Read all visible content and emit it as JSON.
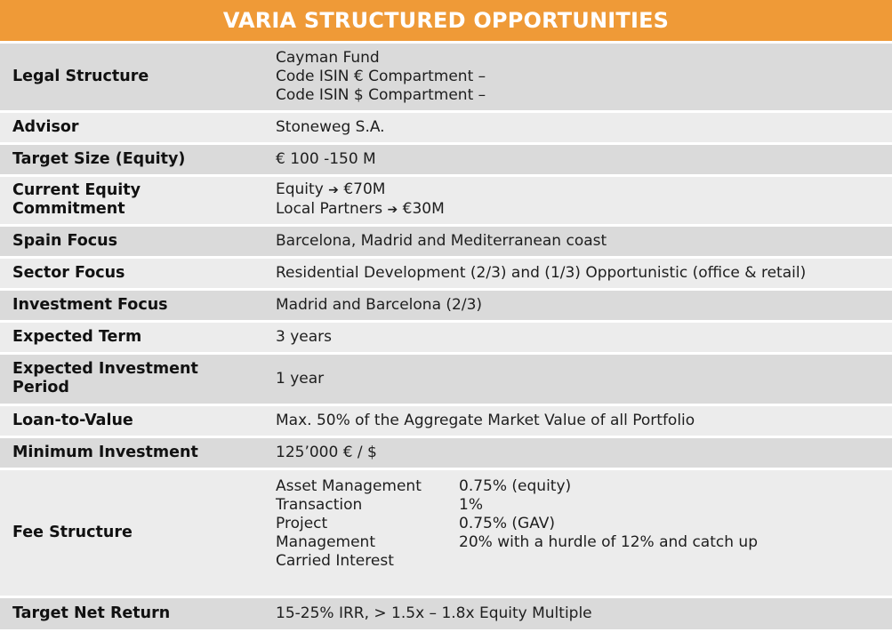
{
  "title": "VARIA STRUCTURED OPPORTUNITIES",
  "rows": {
    "legal": {
      "label": "Legal Structure",
      "lines": [
        "Cayman Fund",
        "Code ISIN € Compartment –",
        "Code ISIN $ Compartment –"
      ]
    },
    "advisor": {
      "label": "Advisor",
      "value": "Stoneweg S.A."
    },
    "target_size": {
      "label": "Target Size (Equity)",
      "value": "€ 100 -150 M"
    },
    "current_equity": {
      "label_lines": [
        "Current Equity",
        "Commitment"
      ],
      "items": [
        {
          "name": "Equity",
          "amount": "€70M"
        },
        {
          "name": "Local Partners",
          "amount": "€30M"
        }
      ],
      "arrow_icon": "right-arrow-icon"
    },
    "spain_focus": {
      "label": "Spain Focus",
      "value": "Barcelona, Madrid and Mediterranean coast"
    },
    "sector_focus": {
      "label": "Sector Focus",
      "value": "Residential Development  (2/3) and (1/3) Opportunistic (office & retail)"
    },
    "investment_focus": {
      "label": "Investment Focus",
      "value": "Madrid and Barcelona  (2/3)"
    },
    "expected_term": {
      "label": "Expected Term",
      "value": "3 years"
    },
    "expected_period": {
      "label_lines": [
        "Expected Investment",
        "Period"
      ],
      "value": "1 year"
    },
    "ltv": {
      "label": "Loan-to-Value",
      "value": "Max. 50% of the Aggregate Market Value of all Portfolio"
    },
    "min_investment": {
      "label": "Minimum Investment",
      "value": "125’000 € / $"
    },
    "fee": {
      "label": "Fee Structure",
      "names": [
        "Asset Management",
        "Transaction",
        "Project",
        "Management",
        "Carried Interest"
      ],
      "values": [
        "0.75% (equity)",
        "1%",
        "0.75% (GAV)",
        "20% with a hurdle of 12% and catch up",
        ""
      ]
    },
    "net_return": {
      "label": "Target Net Return",
      "value": "15-25% IRR, > 1.5x – 1.8x Equity Multiple"
    }
  },
  "colors": {
    "header_bg": "#ef9a37",
    "row_dark": "#dadada",
    "row_light": "#ececec"
  }
}
